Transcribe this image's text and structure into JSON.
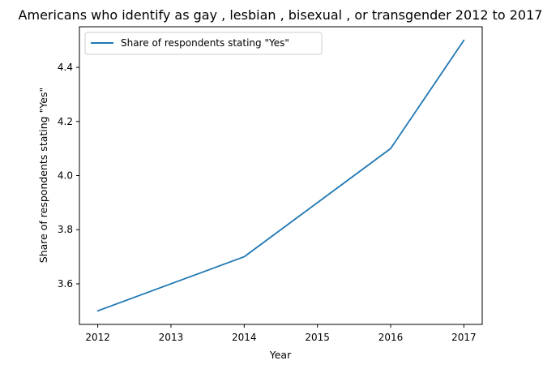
{
  "chart_data": {
    "type": "line",
    "title": "Americans who identify as gay , lesbian , bisexual , or transgender 2012 to 2017",
    "xlabel": "Year",
    "ylabel": "Share of respondents stating \"Yes\"",
    "x": [
      2012,
      2013,
      2014,
      2015,
      2016,
      2017
    ],
    "series": [
      {
        "name": "Share of respondents stating \"Yes\"",
        "values": [
          3.5,
          3.6,
          3.7,
          3.9,
          4.1,
          4.5
        ],
        "color": "#1f77b4"
      }
    ],
    "xlim": [
      2011.75,
      2017.25
    ],
    "ylim": [
      3.45,
      4.55
    ],
    "xticks": [
      2012,
      2013,
      2014,
      2015,
      2016,
      2017
    ],
    "yticks": [
      3.6,
      3.8,
      4.0,
      4.2,
      4.4
    ],
    "ytick_labels": [
      "3.6",
      "3.8",
      "4.0",
      "4.2",
      "4.4"
    ],
    "grid": false,
    "legend_position": "top-left"
  }
}
